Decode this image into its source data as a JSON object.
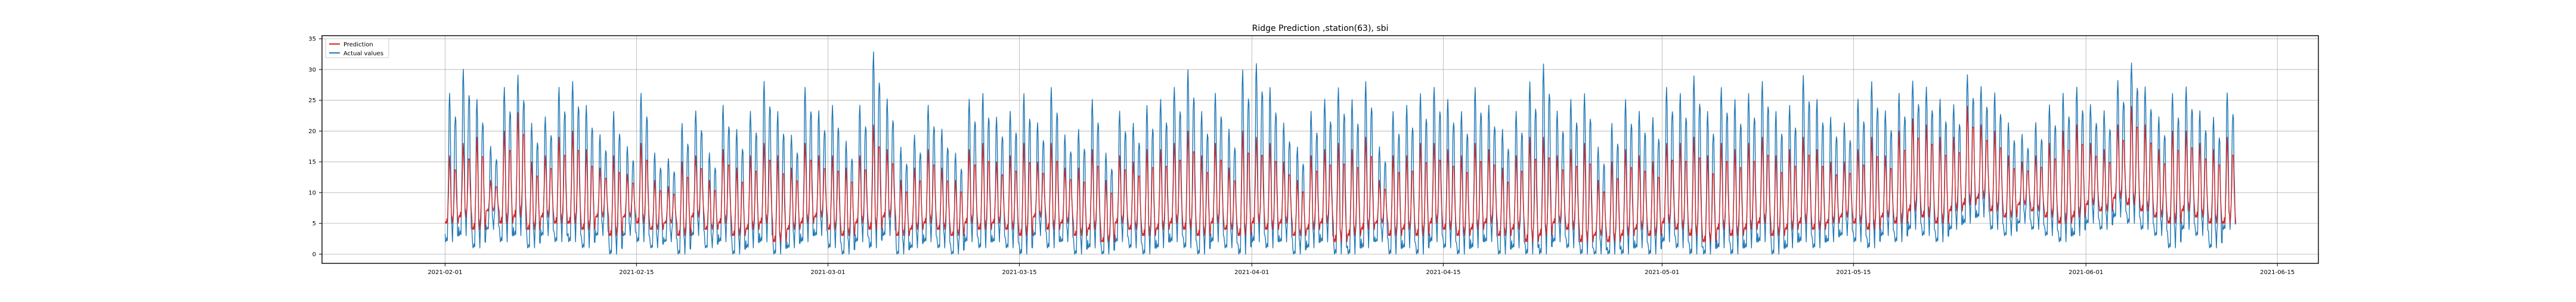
{
  "chart_data": {
    "type": "line",
    "title": "Ridge Prediction ,station(63), sbi",
    "xlabel": "",
    "ylabel": "",
    "x_range": [
      "2021-01-23",
      "2021-06-18"
    ],
    "ylim": [
      -1.5,
      35.5
    ],
    "x_ticks": [
      "2021-02-01",
      "2021-02-15",
      "2021-03-01",
      "2021-03-15",
      "2021-04-01",
      "2021-04-15",
      "2021-05-01",
      "2021-05-15",
      "2021-06-01",
      "2021-06-15"
    ],
    "y_ticks": [
      0,
      5,
      10,
      15,
      20,
      25,
      30,
      35
    ],
    "grid": true,
    "legend_position": "top-left",
    "series": [
      {
        "name": "Prediction",
        "color": "#d62728",
        "x_start": "2021-02-01",
        "x_end": "2021-06-11",
        "daily_peak": [
          16,
          18,
          19,
          12,
          20,
          23,
          15,
          16,
          19,
          20,
          17,
          14,
          16,
          13,
          18,
          12,
          11,
          15,
          16,
          12,
          17,
          14,
          16,
          18,
          16,
          14,
          18,
          16,
          16,
          14,
          16,
          21,
          17,
          12,
          14,
          17,
          14,
          12,
          17,
          18,
          15,
          16,
          18,
          15,
          18,
          14,
          14,
          17,
          12,
          16,
          15,
          17,
          17,
          18,
          20,
          16,
          18,
          14,
          20,
          19,
          18,
          15,
          12,
          16,
          17,
          18,
          17,
          19,
          12,
          16,
          16,
          18,
          18,
          17,
          16,
          18,
          17,
          14,
          16,
          19,
          19,
          16,
          17,
          18,
          12,
          15,
          17,
          16,
          15,
          18,
          18,
          19,
          16,
          18,
          17,
          18,
          19,
          16,
          17,
          19,
          17,
          15,
          15,
          17,
          19,
          16,
          20,
          22,
          21,
          19,
          19,
          24,
          21,
          20,
          16,
          15,
          16,
          18,
          20,
          21,
          18,
          17,
          21,
          24,
          21,
          17,
          20,
          20,
          18,
          17,
          19
        ],
        "daily_trough": [
          5,
          6,
          4,
          7,
          5,
          6,
          4,
          6,
          5,
          5,
          4,
          6,
          3,
          6,
          5,
          4,
          5,
          3,
          6,
          4,
          5,
          3,
          4,
          5,
          2,
          4,
          5,
          6,
          4,
          3,
          5,
          4,
          6,
          3,
          4,
          5,
          4,
          3,
          5,
          4,
          5,
          4,
          3,
          6,
          4,
          5,
          3,
          4,
          2,
          5,
          4,
          3,
          4,
          5,
          4,
          3,
          5,
          4,
          3,
          5,
          4,
          5,
          3,
          4,
          5,
          2,
          3,
          4,
          5,
          3,
          4,
          3,
          5,
          4,
          3,
          4,
          5,
          3,
          4,
          2,
          3,
          5,
          4,
          2,
          3,
          2,
          3,
          4,
          3,
          5,
          4,
          3,
          2,
          4,
          3,
          4,
          5,
          3,
          4,
          5,
          4,
          5,
          6,
          5,
          4,
          6,
          5,
          7,
          6,
          5,
          7,
          8,
          9,
          7,
          6,
          8,
          7,
          6,
          5,
          6,
          8,
          7,
          9,
          8,
          7,
          6,
          5,
          7,
          6,
          5,
          5
        ]
      },
      {
        "name": "Actual values",
        "color": "#1f77b4",
        "x_start": "2021-02-01",
        "x_end": "2021-06-11",
        "daily_peak": [
          27,
          31,
          26,
          18,
          28,
          30,
          22,
          23,
          28,
          29,
          25,
          20,
          24,
          18,
          27,
          17,
          16,
          22,
          24,
          17,
          25,
          21,
          24,
          29,
          24,
          20,
          28,
          24,
          25,
          19,
          25,
          34,
          26,
          18,
          20,
          25,
          21,
          17,
          26,
          27,
          23,
          24,
          27,
          22,
          28,
          20,
          21,
          26,
          17,
          24,
          22,
          25,
          26,
          28,
          31,
          24,
          27,
          21,
          31,
          32,
          28,
          22,
          18,
          24,
          26,
          28,
          26,
          29,
          18,
          24,
          25,
          27,
          28,
          26,
          24,
          28,
          25,
          21,
          24,
          29,
          32,
          24,
          26,
          27,
          18,
          22,
          26,
          24,
          23,
          28,
          27,
          30,
          24,
          28,
          26,
          27,
          29,
          24,
          25,
          30,
          26,
          23,
          22,
          26,
          29,
          24,
          27,
          29,
          28,
          26,
          25,
          30,
          28,
          27,
          22,
          20,
          22,
          25,
          27,
          28,
          25,
          24,
          29,
          32,
          28,
          23,
          27,
          28,
          24,
          23,
          27
        ],
        "daily_trough": [
          2,
          3,
          1,
          4,
          2,
          3,
          1,
          3,
          2,
          2,
          1,
          3,
          0,
          3,
          2,
          1,
          2,
          0,
          3,
          1,
          2,
          0,
          1,
          2,
          0,
          1,
          2,
          3,
          1,
          0,
          2,
          1,
          3,
          0,
          1,
          2,
          1,
          0,
          2,
          1,
          2,
          1,
          0,
          3,
          1,
          2,
          0,
          1,
          0,
          2,
          1,
          0,
          1,
          2,
          1,
          0,
          2,
          1,
          0,
          2,
          1,
          2,
          0,
          1,
          2,
          0,
          0,
          1,
          2,
          0,
          1,
          0,
          2,
          1,
          0,
          1,
          2,
          0,
          1,
          0,
          0,
          2,
          1,
          0,
          0,
          0,
          0,
          1,
          0,
          2,
          1,
          0,
          0,
          1,
          0,
          1,
          2,
          0,
          1,
          2,
          1,
          2,
          3,
          2,
          1,
          3,
          2,
          4,
          3,
          2,
          4,
          5,
          6,
          4,
          3,
          5,
          4,
          3,
          2,
          3,
          5,
          4,
          6,
          5,
          4,
          3,
          1,
          4,
          3,
          1,
          4
        ]
      }
    ]
  }
}
